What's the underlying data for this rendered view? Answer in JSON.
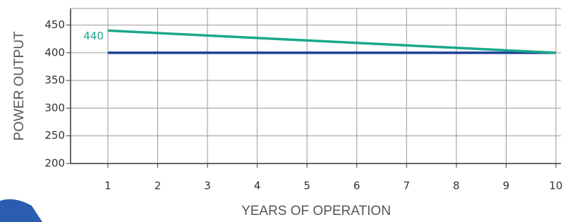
{
  "chart_data": {
    "type": "line",
    "x": [
      1,
      2,
      3,
      4,
      5,
      6,
      7,
      8,
      9,
      10
    ],
    "xlabel": "YEARS OF OPERATION",
    "ylabel": "POWER OUTPUT",
    "xlim": [
      0.25,
      10.1
    ],
    "ylim": [
      200,
      480
    ],
    "xticks": [
      1,
      2,
      3,
      4,
      5,
      6,
      7,
      8,
      9,
      10
    ],
    "yticks": [
      200,
      250,
      300,
      350,
      400,
      450
    ],
    "grid": true,
    "series": [
      {
        "name": null,
        "color": "#1c3f94",
        "values": [
          400,
          400,
          400,
          400,
          400,
          400,
          400,
          400,
          400,
          400
        ]
      },
      {
        "name": null,
        "color": "#1aa88a",
        "values": [
          440,
          435.6,
          431.1,
          426.7,
          422.2,
          417.8,
          413.3,
          408.9,
          404.4,
          400
        ],
        "value_labels": [
          "440",
          null,
          null,
          null,
          null,
          null,
          null,
          null,
          null,
          null
        ]
      }
    ]
  }
}
